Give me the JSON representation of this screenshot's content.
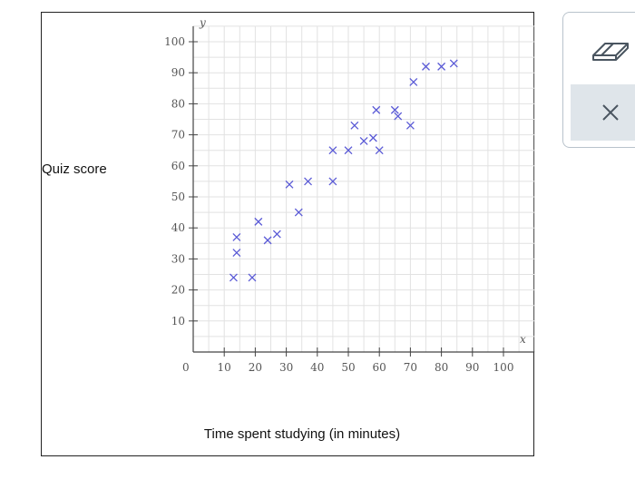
{
  "labels": {
    "ylabel": "Quiz score",
    "xlabel": "Time spent studying (in minutes)",
    "x_axis_letter": "x",
    "y_axis_letter": "y",
    "origin": "0"
  },
  "chart_data": {
    "type": "scatter",
    "title": "",
    "xlabel": "Time spent studying (in minutes)",
    "ylabel": "Quiz score",
    "xlim": [
      0,
      110
    ],
    "ylim": [
      0,
      105
    ],
    "x_ticks": [
      10,
      20,
      30,
      40,
      50,
      60,
      70,
      80,
      90,
      100
    ],
    "y_ticks": [
      10,
      20,
      30,
      40,
      50,
      60,
      70,
      80,
      90,
      100
    ],
    "grid": true,
    "marker": "x",
    "marker_color": "#5a5ad6",
    "points": [
      {
        "x": 13,
        "y": 24
      },
      {
        "x": 14,
        "y": 37
      },
      {
        "x": 14,
        "y": 32
      },
      {
        "x": 19,
        "y": 24
      },
      {
        "x": 21,
        "y": 42
      },
      {
        "x": 24,
        "y": 36
      },
      {
        "x": 27,
        "y": 38
      },
      {
        "x": 31,
        "y": 54
      },
      {
        "x": 34,
        "y": 45
      },
      {
        "x": 37,
        "y": 55
      },
      {
        "x": 45,
        "y": 55
      },
      {
        "x": 45,
        "y": 65
      },
      {
        "x": 50,
        "y": 65
      },
      {
        "x": 52,
        "y": 73
      },
      {
        "x": 55,
        "y": 68
      },
      {
        "x": 58,
        "y": 69
      },
      {
        "x": 59,
        "y": 78
      },
      {
        "x": 60,
        "y": 65
      },
      {
        "x": 65,
        "y": 78
      },
      {
        "x": 66,
        "y": 76
      },
      {
        "x": 70,
        "y": 73
      },
      {
        "x": 71,
        "y": 87
      },
      {
        "x": 75,
        "y": 92
      },
      {
        "x": 80,
        "y": 92
      },
      {
        "x": 84,
        "y": 93
      }
    ]
  },
  "tools": {
    "eraser_icon": "eraser-icon",
    "close_icon": "close-icon",
    "icon_color": "#4a5560",
    "close_bg": "#dfe5ea"
  }
}
